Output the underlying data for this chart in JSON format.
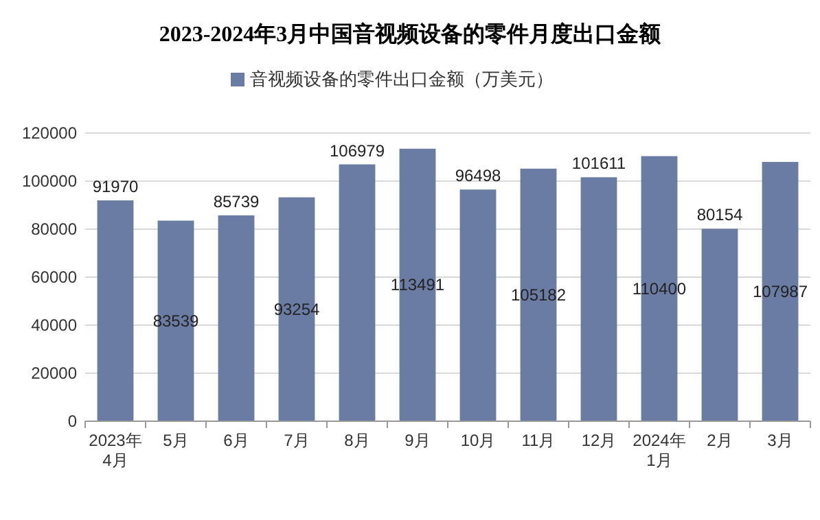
{
  "chart_data": {
    "type": "bar",
    "title": "2023-2024年3月中国音视频设备的零件月度出口金额",
    "categories": [
      "2023年\n4月",
      "5月",
      "6月",
      "7月",
      "8月",
      "9月",
      "10月",
      "11月",
      "12月",
      "2024年\n1月",
      "2月",
      "3月"
    ],
    "series": [
      {
        "name": "音视频设备的零件出口金额（万美元）",
        "color": "#6b7ca4",
        "values": [
          91970,
          83539,
          85739,
          93254,
          106979,
          113491,
          96498,
          105182,
          101611,
          110400,
          80154,
          107987
        ]
      }
    ],
    "ylim": [
      0,
      120000
    ],
    "yticks": [
      0,
      20000,
      40000,
      60000,
      80000,
      100000,
      120000
    ],
    "grid": "y",
    "legend": "top",
    "data_labels": true
  }
}
